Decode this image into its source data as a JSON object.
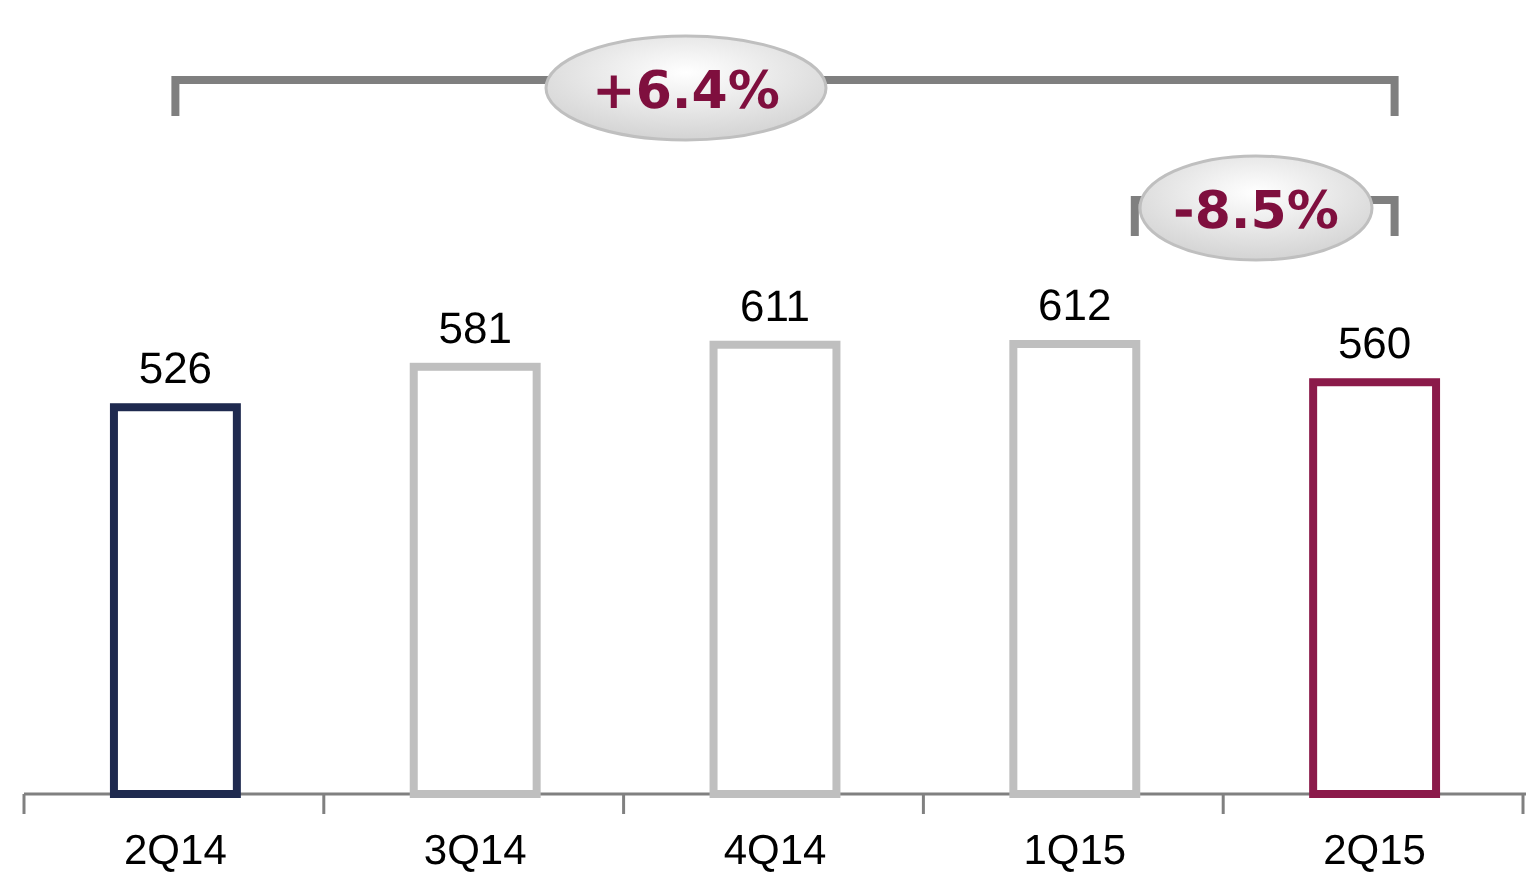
{
  "chart_data": {
    "type": "bar",
    "categories": [
      "2Q14",
      "3Q14",
      "4Q14",
      "1Q15",
      "2Q15"
    ],
    "values": [
      526,
      581,
      611,
      612,
      560
    ],
    "colors": [
      "#1f2a4f",
      "#bfbfbf",
      "#bfbfbf",
      "#bfbfbf",
      "#8b1a4a"
    ],
    "data_labels": true,
    "annotations": [
      "+6.4%",
      "-8.5%"
    ]
  }
}
